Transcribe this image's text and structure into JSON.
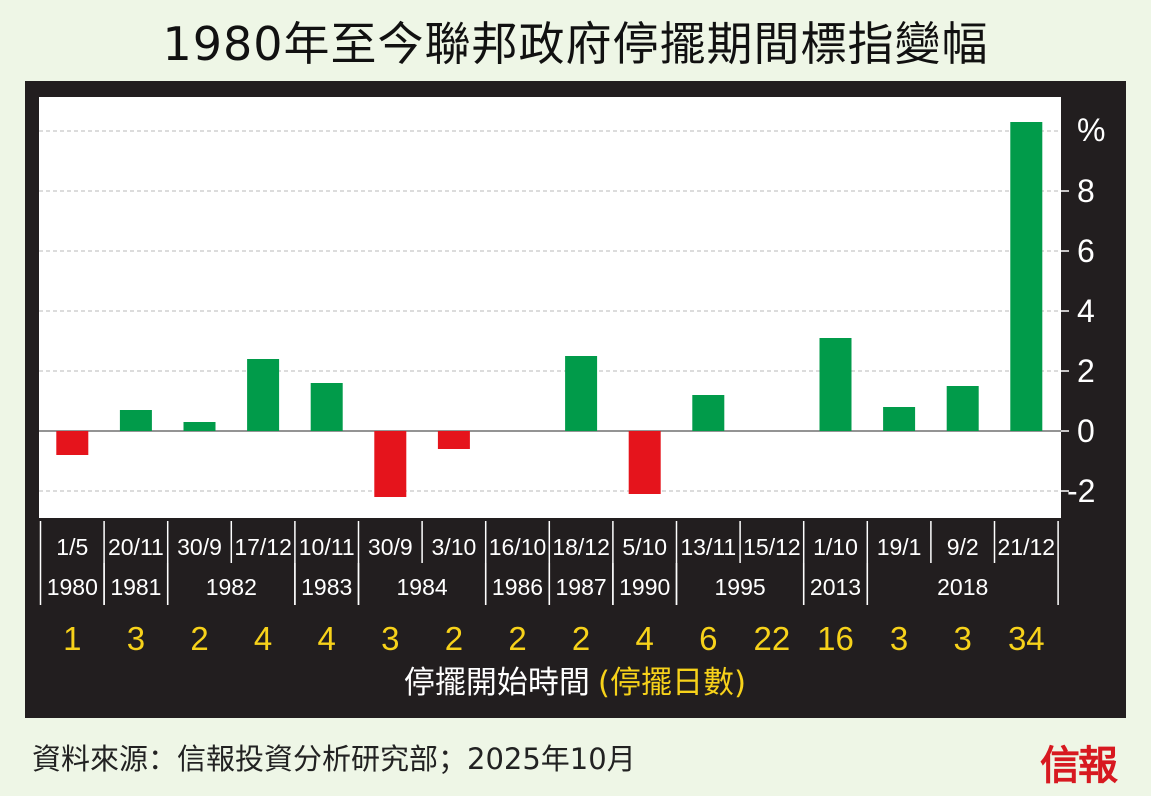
{
  "title": "1980年至今聯邦政府停擺期間標指變幅",
  "source": "資料來源：信報投資分析研究部；2025年10月",
  "logo": "信報",
  "colors": {
    "positive": "#019b4a",
    "negative": "#e5141c",
    "panel": "#221e1f",
    "days": "#f7d21a"
  },
  "chart_data": {
    "type": "bar",
    "unit": "%",
    "ylim": [
      -2.6,
      10.5
    ],
    "yticks": [
      -2,
      0,
      2,
      4,
      6,
      8
    ],
    "grid": true,
    "xlabel": "停擺開始時間",
    "xlabel_sub": "(停擺日數)",
    "categories": [
      "1/5",
      "20/11",
      "30/9",
      "17/12",
      "10/11",
      "30/9",
      "3/10",
      "16/10",
      "18/12",
      "5/10",
      "13/11",
      "15/12",
      "1/10",
      "19/1",
      "9/2",
      "21/12"
    ],
    "years": [
      {
        "label": "1980",
        "start": 0,
        "end": 0
      },
      {
        "label": "1981",
        "start": 1,
        "end": 1
      },
      {
        "label": "1982",
        "start": 2,
        "end": 3
      },
      {
        "label": "1983",
        "start": 4,
        "end": 4
      },
      {
        "label": "1984",
        "start": 5,
        "end": 6
      },
      {
        "label": "1986",
        "start": 7,
        "end": 7
      },
      {
        "label": "1987",
        "start": 8,
        "end": 8
      },
      {
        "label": "1990",
        "start": 9,
        "end": 9
      },
      {
        "label": "1995",
        "start": 10,
        "end": 11
      },
      {
        "label": "2013",
        "start": 12,
        "end": 12
      },
      {
        "label": "2018",
        "start": 13,
        "end": 15
      }
    ],
    "values": [
      -0.8,
      0.7,
      0.3,
      2.4,
      1.6,
      -2.2,
      -0.6,
      0,
      2.5,
      -2.1,
      1.2,
      0,
      3.1,
      0.8,
      1.5,
      10.3
    ],
    "days": [
      "1",
      "3",
      "2",
      "4",
      "4",
      "3",
      "2",
      "2",
      "2",
      "4",
      "6",
      "22",
      "16",
      "3",
      "3",
      "34"
    ]
  }
}
